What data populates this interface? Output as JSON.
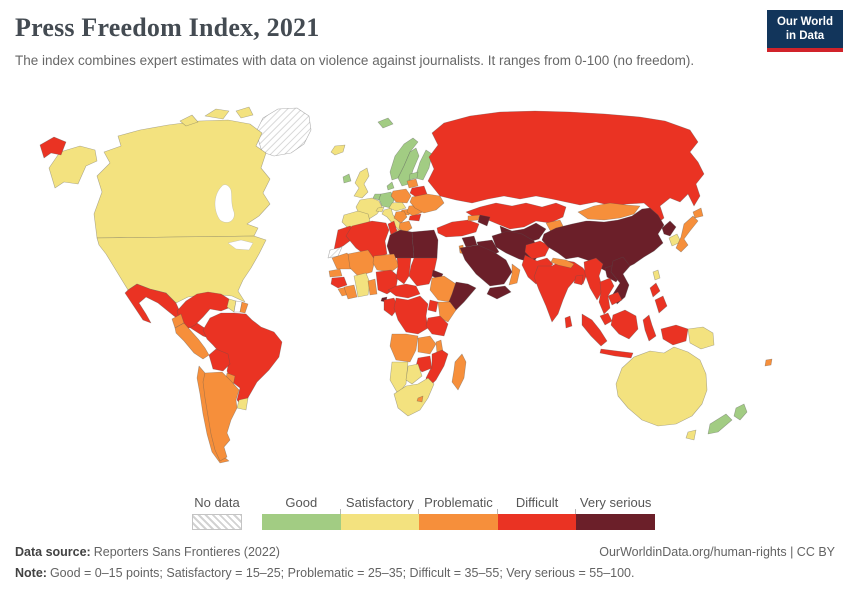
{
  "header": {
    "title": "Press Freedom Index, 2021",
    "subtitle": "The index combines expert estimates with data on violence against journalists. It ranges from 0-100 (no freedom)."
  },
  "logo": {
    "line1": "Our World",
    "line2": "in Data"
  },
  "legend": {
    "no_data_label": "No data"
  },
  "footer": {
    "data_source_label": "Data source:",
    "data_source_text": "Reporters Sans Frontieres (2022)",
    "link_text": "OurWorldinData.org/human-rights",
    "license_suffix": " | CC BY",
    "note_label": "Note:",
    "note_text": "Good = 0–15 points; Satisfactory = 15–25; Problematic = 25–35; Difficult = 35–55; Very serious = 55–100."
  },
  "colors": {
    "ocean": "#ffffff",
    "missing": "#ffffff",
    "border": "#777777"
  },
  "chart_data": {
    "type": "choropleth_map",
    "title": "Press Freedom Index, 2021",
    "year": 2021,
    "value_range": "0-100 (no freedom)",
    "legend_categories": [
      {
        "key": "good",
        "label": "Good",
        "range": "0–15 points",
        "color": "#a2cc83"
      },
      {
        "key": "satisfactory",
        "label": "Satisfactory",
        "range": "15–25",
        "color": "#f3e27f"
      },
      {
        "key": "problematic",
        "label": "Problematic",
        "range": "25–35",
        "color": "#f68f3b"
      },
      {
        "key": "difficult",
        "label": "Difficult",
        "range": "35–55",
        "color": "#ea3323"
      },
      {
        "key": "very_serious",
        "label": "Very serious",
        "range": "55–100",
        "color": "#6b1f29"
      }
    ],
    "no_data": {
      "label": "No data",
      "fill": "hatch"
    },
    "regions": {
      "greenland": "no_data",
      "canada": "satisfactory",
      "arctic-island-1": "satisfactory",
      "arctic-island-2": "satisfactory",
      "arctic-island-3": "satisfactory",
      "alaska": "satisfactory",
      "chukotka": "difficult",
      "usa": "satisfactory",
      "mexico": "difficult",
      "guatemala": "problematic",
      "honduras-nicaragua": "difficult",
      "costa-rica-panama": "good",
      "cuba": "very_serious",
      "jamaica": "good",
      "hispaniola": "problematic",
      "colombia-venezuela": "difficult",
      "guyana": "satisfactory",
      "suriname": "missing",
      "french-guiana": "problematic",
      "ecuador": "problematic",
      "peru": "problematic",
      "brazil": "difficult",
      "bolivia": "difficult",
      "paraguay": "problematic",
      "uruguay": "satisfactory",
      "chile": "problematic",
      "argentina": "problematic",
      "iceland": "satisfactory",
      "ireland": "good",
      "uk": "satisfactory",
      "norway": "good",
      "sweden": "good",
      "finland": "good",
      "svalbard": "good",
      "denmark": "good",
      "benelux": "good",
      "germany": "good",
      "france": "satisfactory",
      "iberia": "satisfactory",
      "switzerland": "satisfactory",
      "italy": "satisfactory",
      "sicily": "satisfactory",
      "czech-austria": "satisfactory",
      "poland": "problematic",
      "hungary": "problematic",
      "romania": "problematic",
      "bulgaria": "difficult",
      "balkans": "problematic",
      "greece": "problematic",
      "estonia": "good",
      "baltics": "problematic",
      "belarus": "difficult",
      "ukraine": "problematic",
      "russia": "difficult",
      "kazakhstan": "difficult",
      "turkmenistan-uzbekistan": "very_serious",
      "kyrgyzstan": "problematic",
      "turkey": "difficult",
      "georgia": "problematic",
      "azerbaijan": "very_serious",
      "syria": "very_serious",
      "israel-lebanon": "problematic",
      "iraq": "very_serious",
      "iran": "very_serious",
      "saudi-arabia": "very_serious",
      "yemen": "very_serious",
      "oman-uae": "problematic",
      "afghanistan": "difficult",
      "pakistan": "difficult",
      "india": "difficult",
      "nepal": "problematic",
      "bangladesh": "difficult",
      "sri-lanka": "difficult",
      "china": "very_serious",
      "mongolia": "problematic",
      "north-korea": "very_serious",
      "south-korea": "satisfactory",
      "japan": "problematic",
      "taiwan": "satisfactory",
      "myanmar": "difficult",
      "laos": "very_serious",
      "vietnam": "very_serious",
      "thailand": "difficult",
      "cambodia": "difficult",
      "malaysia": "difficult",
      "indonesia": "difficult",
      "png": "satisfactory",
      "philippines": "difficult",
      "morocco": "difficult",
      "algeria": "difficult",
      "tunisia": "difficult",
      "libya": "very_serious",
      "egypt": "very_serious",
      "western-sahara": "no_data",
      "mauritania": "problematic",
      "senegal": "problematic",
      "guinea": "difficult",
      "sierra-leone-liberia": "problematic",
      "mali": "problematic",
      "ivory-coast": "problematic",
      "burkina-ghana": "satisfactory",
      "togo-benin": "problematic",
      "niger": "problematic",
      "nigeria": "difficult",
      "chad": "difficult",
      "sudan": "difficult",
      "eritrea": "very_serious",
      "ethiopia": "problematic",
      "somalia": "very_serious",
      "kenya": "problematic",
      "uganda": "difficult",
      "cameroon-car": "difficult",
      "equatorial-guinea": "very_serious",
      "gabon-congo": "difficult",
      "drc": "difficult",
      "tanzania": "difficult",
      "angola": "problematic",
      "zambia": "problematic",
      "malawi": "problematic",
      "mozambique": "difficult",
      "zimbabwe": "difficult",
      "namibia": "satisfactory",
      "botswana": "satisfactory",
      "south-africa": "satisfactory",
      "lesotho": "problematic",
      "madagascar": "problematic",
      "australia": "satisfactory",
      "tasmania": "satisfactory",
      "new-zealand": "good",
      "fiji": "problematic"
    }
  }
}
